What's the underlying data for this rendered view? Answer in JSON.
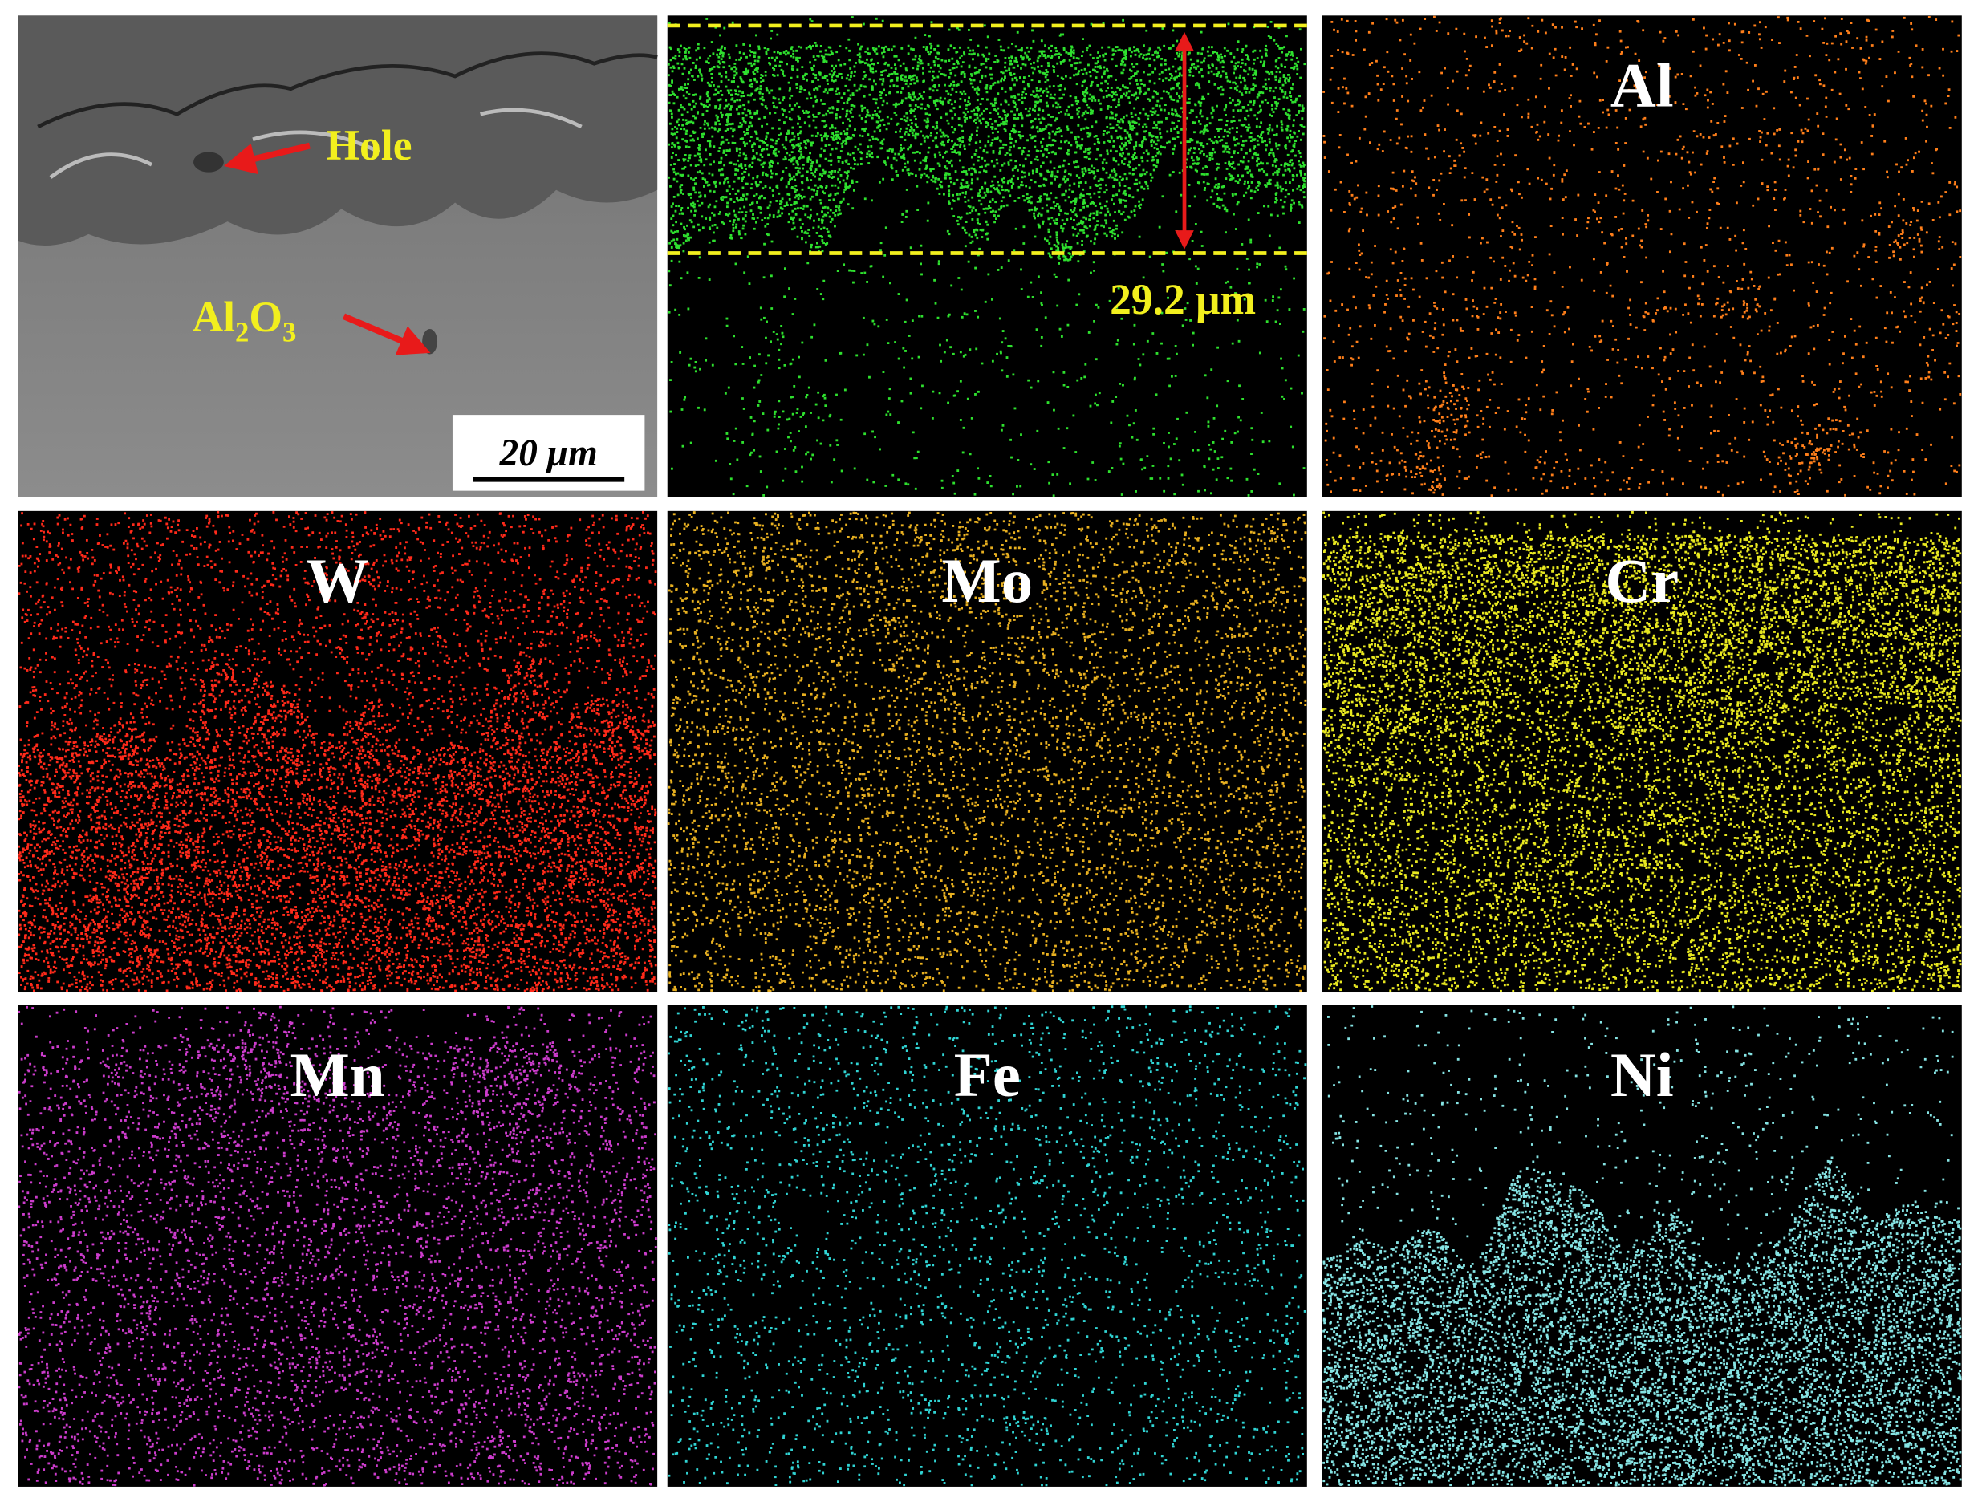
{
  "sem_panel": {
    "hole_label": "Hole",
    "oxide_label": [
      "Al",
      "2",
      "O",
      "3"
    ],
    "scale_bar": "20 μm"
  },
  "oxygen_panel": {
    "thickness_label": "29.2 μm"
  },
  "element_panels": [
    {
      "label": "Al"
    },
    {
      "label": "W"
    },
    {
      "label": "Mo"
    },
    {
      "label": "Cr"
    },
    {
      "label": "Mn"
    },
    {
      "label": "Fe"
    },
    {
      "label": "Ni"
    }
  ]
}
